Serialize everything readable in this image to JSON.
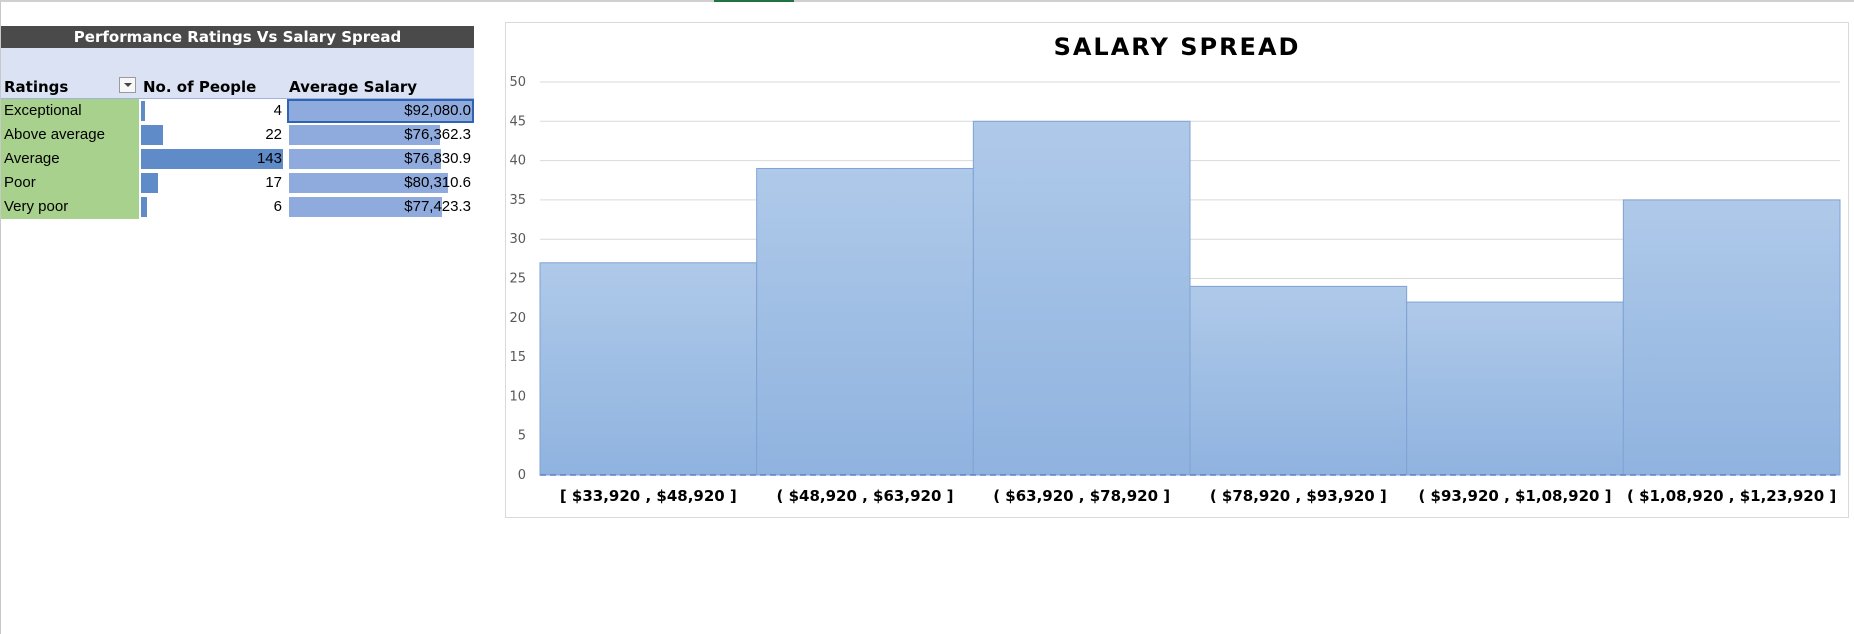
{
  "pivot": {
    "title": "Performance Ratings Vs Salary Spread",
    "headers": {
      "ratings": "Ratings",
      "people": "No. of People",
      "salary": "Average Salary"
    },
    "rows": [
      {
        "rating": "Exceptional",
        "people": "4",
        "people_value": 4,
        "salary": "$92,080.0",
        "salary_value": 92080.0
      },
      {
        "rating": "Above average",
        "people": "22",
        "people_value": 22,
        "salary": "$76,362.3",
        "salary_value": 76362.3
      },
      {
        "rating": "Average",
        "people": "143",
        "people_value": 143,
        "salary": "$76,830.9",
        "salary_value": 76830.9
      },
      {
        "rating": "Poor",
        "people": "17",
        "people_value": 17,
        "salary": "$80,310.6",
        "salary_value": 80310.6
      },
      {
        "rating": "Very poor",
        "people": "6",
        "people_value": 6,
        "salary": "$77,423.3",
        "salary_value": 77423.3
      }
    ],
    "databar_color": "#5f8cc8",
    "salarybar_color": "#8faadc",
    "rating_fill": "#a9d18e"
  },
  "chart_data": {
    "type": "bar",
    "title": "SALARY SPREAD",
    "categories": [
      "[ $33,920 ,  $48,920 ]",
      "( $48,920 ,  $63,920 ]",
      "( $63,920 ,  $78,920 ]",
      "( $78,920 ,  $93,920 ]",
      "( $93,920 ,  $1,08,920 ]",
      "( $1,08,920 ,  $1,23,920 ]"
    ],
    "values": [
      27,
      39,
      45,
      24,
      22,
      35
    ],
    "ylim": [
      0,
      50
    ],
    "yticks": [
      0,
      5,
      10,
      15,
      20,
      25,
      30,
      35,
      40,
      45,
      50
    ],
    "grid": true,
    "bar_color_top": "#afc9e9",
    "bar_color_bottom": "#8fb3df",
    "bar_edge": "#7fa3d4"
  }
}
